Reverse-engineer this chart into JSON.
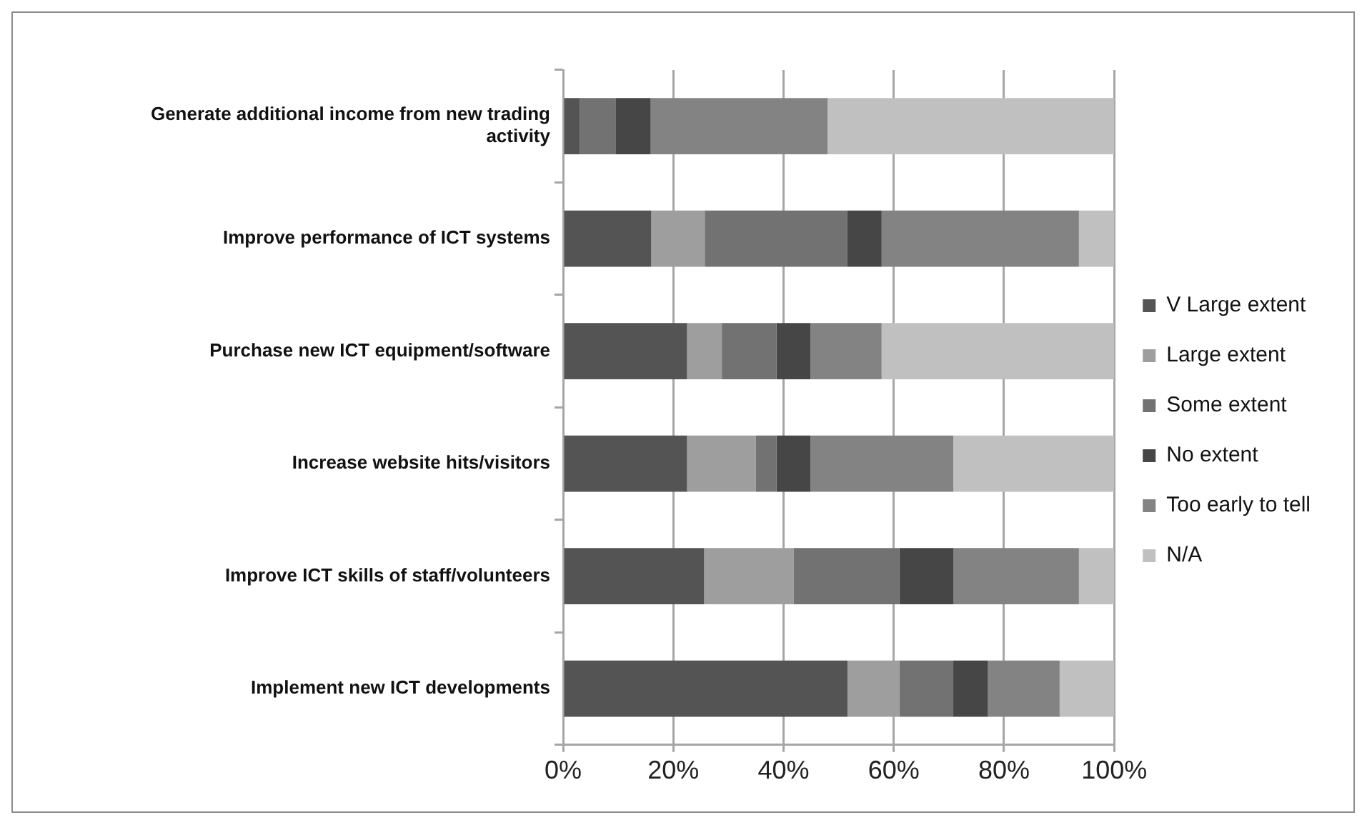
{
  "chart_data": {
    "type": "bar",
    "orientation": "horizontal",
    "stacked": true,
    "categories": [
      "Generate additional income from new trading activity",
      "Improve performance of ICT systems",
      "Purchase new ICT equipment/software",
      "Increase website hits/visitors",
      "Improve ICT skills of staff/volunteers",
      "Implement new ICT developments"
    ],
    "series": [
      {
        "name": "V Large extent",
        "color": "#545454",
        "values": [
          3,
          16,
          22.5,
          22.5,
          25.6,
          51.6
        ]
      },
      {
        "name": "Large extent",
        "color": "#9e9e9e",
        "values": [
          0,
          9.7,
          6.3,
          12.5,
          16.2,
          9.4
        ]
      },
      {
        "name": "Some extent",
        "color": "#727272",
        "values": [
          6.5,
          25.9,
          9.9,
          3.7,
          19.2,
          9.8
        ]
      },
      {
        "name": "No extent",
        "color": "#464646",
        "values": [
          6.4,
          6.2,
          6.2,
          6.2,
          9.8,
          6.3
        ]
      },
      {
        "name": "Too early to tell",
        "color": "#838383",
        "values": [
          32.1,
          35.8,
          12.9,
          25.9,
          22.8,
          13
        ]
      },
      {
        "name": "N/A",
        "color": "#c0c0c0",
        "values": [
          52,
          6.4,
          42.2,
          29.2,
          6.4,
          9.9
        ]
      }
    ],
    "xlim": [
      0,
      100
    ],
    "xticks": [
      {
        "value": 0,
        "label": "0%"
      },
      {
        "value": 20,
        "label": "20%"
      },
      {
        "value": 40,
        "label": "40%"
      },
      {
        "value": 60,
        "label": "60%"
      },
      {
        "value": 80,
        "label": "80%"
      },
      {
        "value": 100,
        "label": "100%"
      }
    ],
    "grid": "x",
    "legend": "right"
  }
}
